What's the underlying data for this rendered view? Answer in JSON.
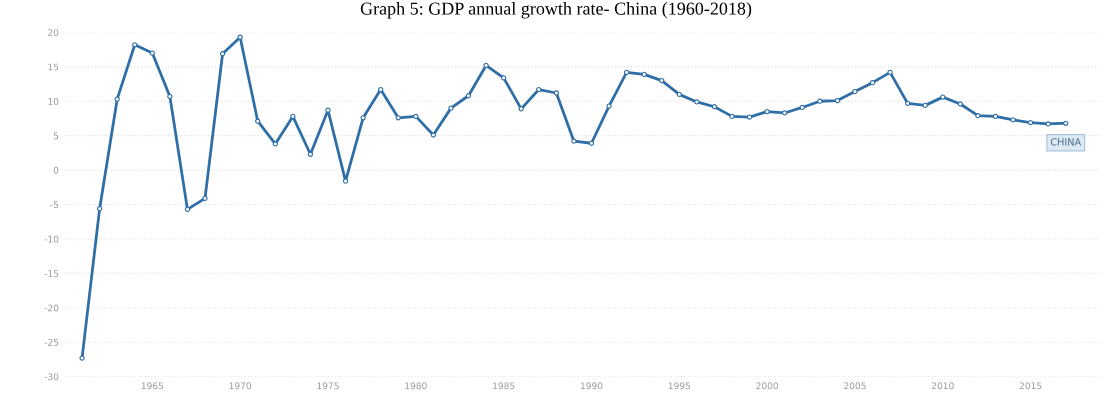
{
  "chart_data": {
    "type": "line",
    "title": "Graph 5: GDP annual growth rate- China (1960-2018)",
    "x": [
      1961,
      1962,
      1963,
      1964,
      1965,
      1966,
      1967,
      1968,
      1969,
      1970,
      1971,
      1972,
      1973,
      1974,
      1975,
      1976,
      1977,
      1978,
      1979,
      1980,
      1981,
      1982,
      1983,
      1984,
      1985,
      1986,
      1987,
      1988,
      1989,
      1990,
      1991,
      1992,
      1993,
      1994,
      1995,
      1996,
      1997,
      1998,
      1999,
      2000,
      2001,
      2002,
      2003,
      2004,
      2005,
      2006,
      2007,
      2008,
      2009,
      2010,
      2011,
      2012,
      2013,
      2014,
      2015,
      2016,
      2017
    ],
    "series": [
      {
        "name": "CHINA",
        "color": "#2f6ea6",
        "values": [
          -27.3,
          -5.6,
          10.3,
          18.2,
          17.0,
          10.7,
          -5.7,
          -4.1,
          16.9,
          19.3,
          7.1,
          3.8,
          7.8,
          2.3,
          8.7,
          -1.6,
          7.6,
          11.7,
          7.6,
          7.8,
          5.1,
          9.0,
          10.8,
          15.2,
          13.4,
          8.9,
          11.7,
          11.2,
          4.2,
          3.9,
          9.3,
          14.2,
          13.9,
          13.0,
          11.0,
          9.9,
          9.2,
          7.8,
          7.7,
          8.5,
          8.3,
          9.1,
          10.0,
          10.1,
          11.4,
          12.7,
          14.2,
          9.7,
          9.4,
          10.6,
          9.6,
          7.9,
          7.8,
          7.3,
          6.9,
          6.7,
          6.8
        ]
      }
    ],
    "xlim": [
      1960,
      2019
    ],
    "xticks": [
      1965,
      1970,
      1975,
      1980,
      1985,
      1990,
      1995,
      2000,
      2005,
      2010,
      2015
    ],
    "ylim": [
      -30,
      20
    ],
    "yticks": [
      -30,
      -25,
      -20,
      -15,
      -10,
      -5,
      0,
      5,
      10,
      15,
      20
    ],
    "grid": "y",
    "marker": "circle",
    "line_style": "solid",
    "legend": false
  }
}
